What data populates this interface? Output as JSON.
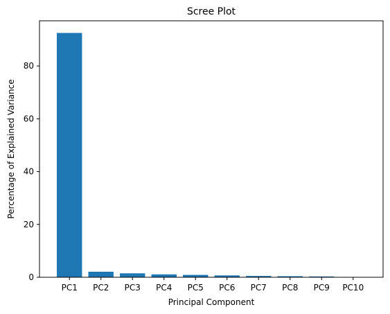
{
  "chart_data": {
    "type": "bar",
    "title": "Scree Plot",
    "xlabel": "Principal Component",
    "ylabel": "Percentage of Explained Variance",
    "categories": [
      "PC1",
      "PC2",
      "PC3",
      "PC4",
      "PC5",
      "PC6",
      "PC7",
      "PC8",
      "PC9",
      "PC10"
    ],
    "values": [
      92.5,
      2.1,
      1.5,
      1.1,
      0.9,
      0.7,
      0.5,
      0.4,
      0.3,
      0.1
    ],
    "ylim": [
      0,
      97.1
    ],
    "yticks": [
      0,
      20,
      40,
      60,
      80
    ],
    "grid": false,
    "bar_color": "#1f77b4"
  }
}
